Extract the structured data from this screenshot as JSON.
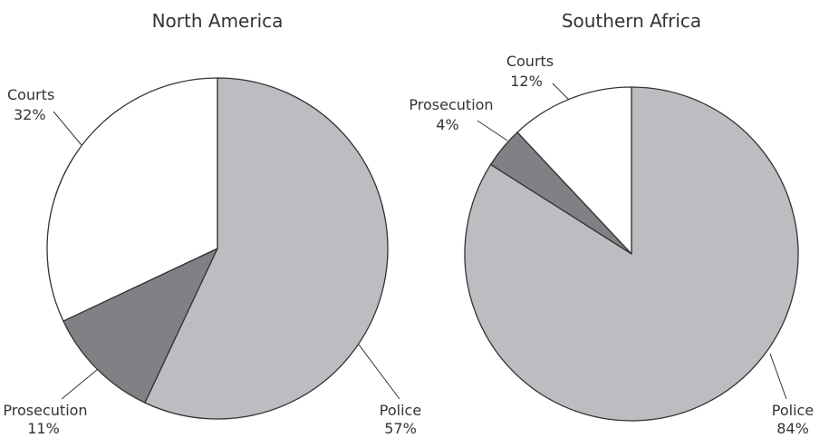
{
  "chart_data": [
    {
      "type": "pie",
      "title": "North America",
      "slices": [
        {
          "label": "Police",
          "value": 57,
          "display": "57%",
          "color": "#bcbdc0"
        },
        {
          "label": "Prosecution",
          "value": 11,
          "display": "11%",
          "color": "#808184"
        },
        {
          "label": "Courts",
          "value": 32,
          "display": "32%",
          "color": "#ffffff"
        }
      ]
    },
    {
      "type": "pie",
      "title": "Southern Africa",
      "slices": [
        {
          "label": "Police",
          "value": 84,
          "display": "84%",
          "color": "#bcbdc0"
        },
        {
          "label": "Prosecution",
          "value": 4,
          "display": "4%",
          "color": "#808184"
        },
        {
          "label": "Courts",
          "value": 12,
          "display": "12%",
          "color": "#ffffff"
        }
      ]
    }
  ]
}
